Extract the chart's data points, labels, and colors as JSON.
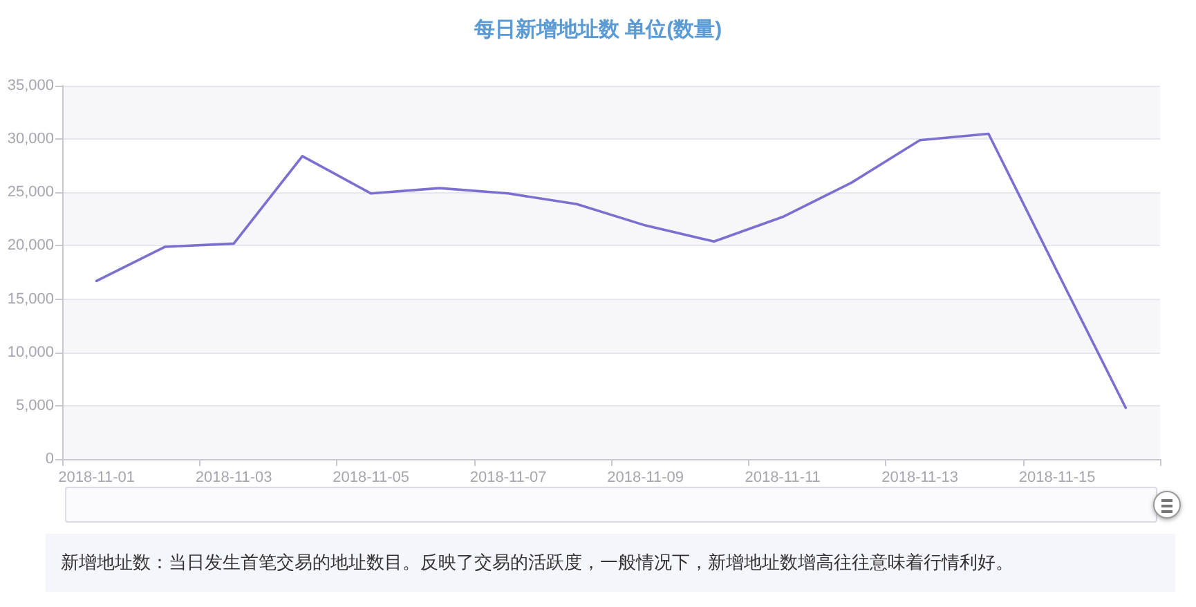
{
  "chart_data": {
    "type": "line",
    "title": "每日新增地址数 单位(数量)",
    "categories": [
      "2018-11-01",
      null,
      "2018-11-03",
      null,
      "2018-11-05",
      null,
      "2018-11-07",
      null,
      "2018-11-09",
      null,
      "2018-11-11",
      null,
      "2018-11-13",
      null,
      "2018-11-15",
      null
    ],
    "series": [
      {
        "color": "#7b6fd0",
        "values": [
          16700,
          19900,
          20200,
          28400,
          24900,
          25400,
          24900,
          23900,
          21900,
          20400,
          22700,
          25900,
          29900,
          30500,
          17600,
          4800
        ]
      }
    ],
    "ylim": [
      0,
      35000
    ],
    "yticks": [
      0,
      {
        "value": 5000,
        "label": "5,000"
      },
      {
        "value": 10000,
        "label": "10,000"
      },
      {
        "value": 15000,
        "label": "15,000"
      },
      {
        "value": 20000,
        "label": "20,000"
      },
      {
        "value": 25000,
        "label": "25,000"
      },
      {
        "value": 30000,
        "label": "30,000"
      },
      {
        "value": 35000,
        "label": "35,000"
      }
    ],
    "grid": "y",
    "marker": "none",
    "annotations": [
      "新增地址数：当日发生首笔交易的地址数目。反映了交易的活跃度，一般情况下，新增地址数增高往往意味着行情利好。"
    ]
  }
}
